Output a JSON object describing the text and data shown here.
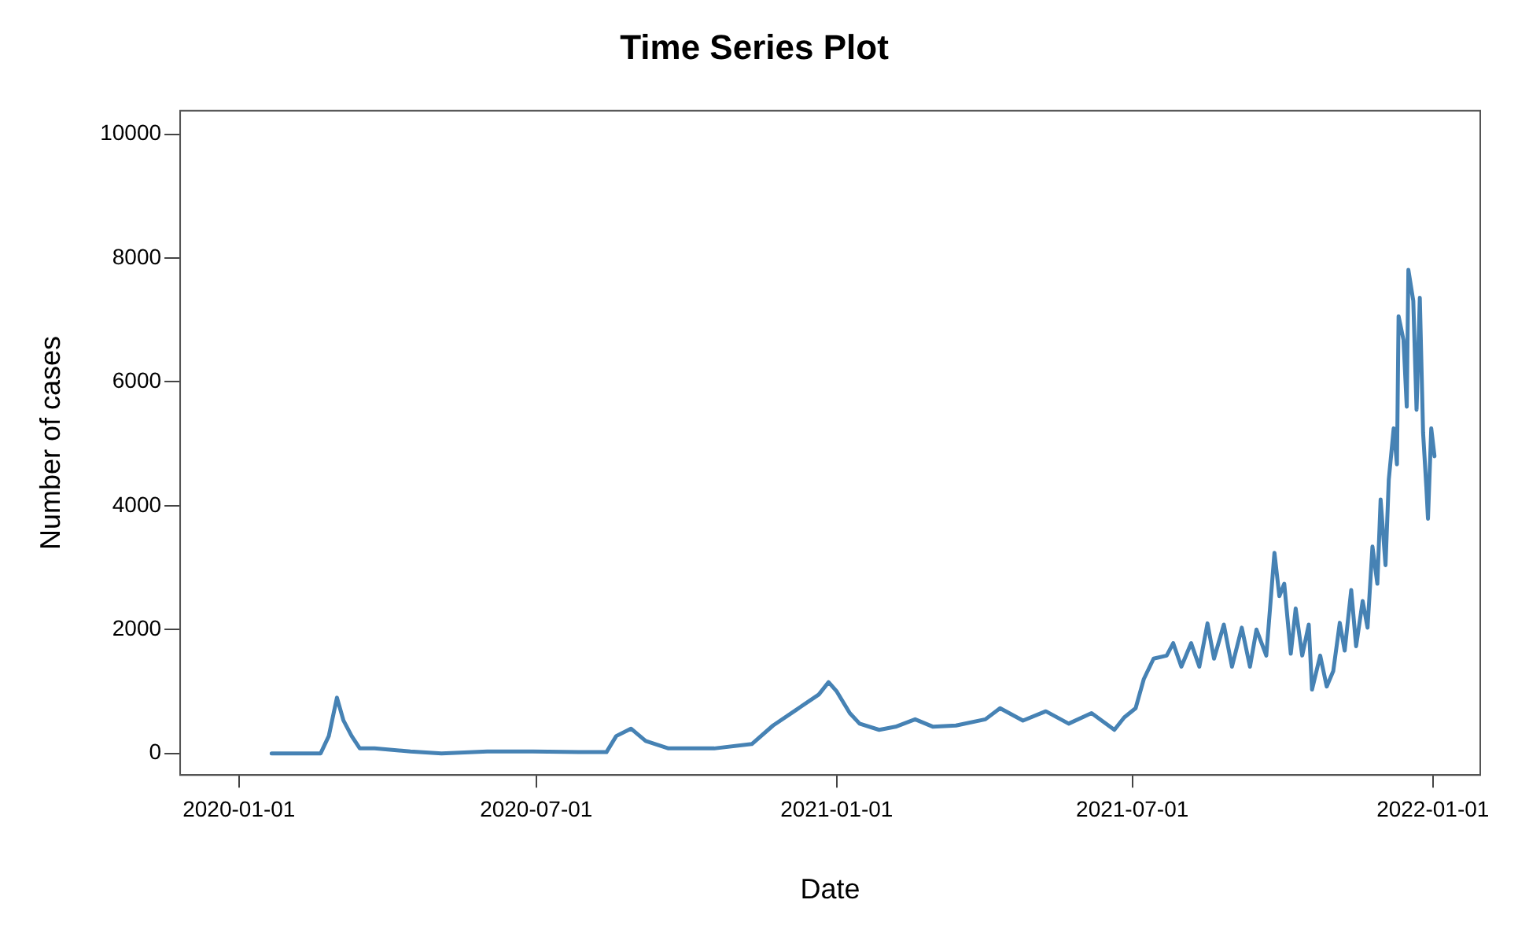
{
  "chart_data": {
    "type": "line",
    "title": "Time Series Plot",
    "xlabel": "Date",
    "ylabel": "Number of cases",
    "xlim": [
      "2019-11-26",
      "2022-01-30"
    ],
    "xticks": [
      {
        "value": "2020-01-01",
        "label": "2020-01-01"
      },
      {
        "value": "2020-07-01",
        "label": "2020-07-01"
      },
      {
        "value": "2021-01-01",
        "label": "2021-01-01"
      },
      {
        "value": "2021-07-01",
        "label": "2021-07-01"
      },
      {
        "value": "2022-01-01",
        "label": "2022-01-01"
      }
    ],
    "ylim": [
      -350,
      10380
    ],
    "yticks": [
      0,
      2000,
      4000,
      6000,
      8000,
      10000
    ],
    "grid": false,
    "legend": false,
    "marker": "none",
    "line_style": "solid",
    "x": [
      "2020-01-21",
      "2020-02-20",
      "2020-02-25",
      "2020-03-01",
      "2020-03-05",
      "2020-03-10",
      "2020-03-15",
      "2020-03-24",
      "2020-04-15",
      "2020-05-04",
      "2020-06-01",
      "2020-06-29",
      "2020-07-27",
      "2020-08-13",
      "2020-08-19",
      "2020-08-28",
      "2020-09-06",
      "2020-09-20",
      "2020-10-18",
      "2020-11-10",
      "2020-11-23",
      "2020-12-07",
      "2020-12-21",
      "2020-12-27",
      "2021-01-01",
      "2021-01-09",
      "2021-01-15",
      "2021-01-27",
      "2021-02-06",
      "2021-02-18",
      "2021-03-01",
      "2021-03-15",
      "2021-04-02",
      "2021-04-11",
      "2021-04-25",
      "2021-05-09",
      "2021-05-23",
      "2021-06-06",
      "2021-06-20",
      "2021-06-26",
      "2021-07-03",
      "2021-07-08",
      "2021-07-14",
      "2021-07-22",
      "2021-07-26",
      "2021-07-31",
      "2021-08-06",
      "2021-08-11",
      "2021-08-16",
      "2021-08-20",
      "2021-08-26",
      "2021-08-31",
      "2021-09-06",
      "2021-09-11",
      "2021-09-15",
      "2021-09-21",
      "2021-09-26",
      "2021-09-29",
      "2021-10-02",
      "2021-10-06",
      "2021-10-09",
      "2021-10-13",
      "2021-10-17",
      "2021-10-19",
      "2021-10-24",
      "2021-10-28",
      "2021-11-01",
      "2021-11-05",
      "2021-11-08",
      "2021-11-12",
      "2021-11-15",
      "2021-11-19",
      "2021-11-22",
      "2021-11-25",
      "2021-11-28",
      "2021-11-30",
      "2021-12-03",
      "2021-12-05",
      "2021-12-08",
      "2021-12-10",
      "2021-12-11",
      "2021-12-14",
      "2021-12-16",
      "2021-12-17",
      "2021-12-20",
      "2021-12-22",
      "2021-12-24",
      "2021-12-26",
      "2021-12-28",
      "2021-12-29",
      "2021-12-31",
      "2022-01-02"
    ],
    "series": [
      {
        "color": "#4682b4",
        "values": [
          0,
          0,
          280,
          900,
          530,
          280,
          80,
          80,
          30,
          0,
          30,
          30,
          20,
          20,
          280,
          400,
          200,
          80,
          80,
          150,
          450,
          700,
          950,
          1150,
          1000,
          650,
          480,
          380,
          430,
          550,
          430,
          450,
          550,
          730,
          530,
          680,
          480,
          650,
          380,
          580,
          730,
          1200,
          1530,
          1580,
          1780,
          1400,
          1780,
          1400,
          2100,
          1530,
          2080,
          1400,
          2030,
          1400,
          2000,
          1580,
          3240,
          2540,
          2740,
          1610,
          2340,
          1580,
          2080,
          1030,
          1580,
          1080,
          1330,
          2110,
          1660,
          2640,
          1730,
          2460,
          2030,
          3340,
          2740,
          4100,
          3040,
          4420,
          5250,
          4670,
          7060,
          6680,
          5600,
          7810,
          7310,
          5550,
          7360,
          5180,
          4300,
          3790,
          5250,
          4800
        ]
      }
    ]
  }
}
